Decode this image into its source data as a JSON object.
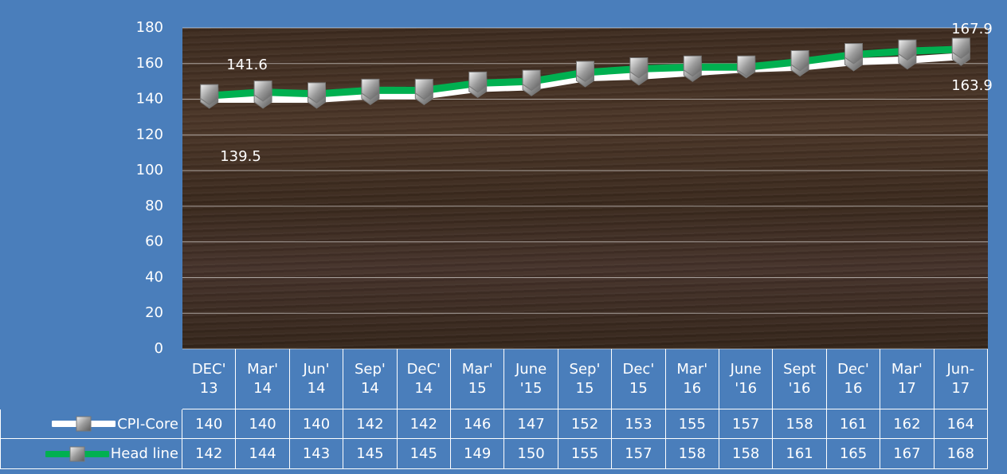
{
  "chart_data": {
    "type": "line",
    "categories": [
      "DEC' 13",
      "Mar' 14",
      "Jun' 14",
      "Sep' 14",
      "DeC' 14",
      "Mar' 15",
      "June '15",
      "Sep' 15",
      "Dec' 15",
      "Mar' 16",
      "June '16",
      "Sept '16",
      "Dec' 16",
      "Mar' 17",
      "Jun- 17"
    ],
    "series": [
      {
        "name": "CPI-Core",
        "color": "#ffffff",
        "values": [
          140,
          140,
          140,
          142,
          142,
          146,
          147,
          152,
          153,
          155,
          157,
          158,
          161,
          162,
          164
        ]
      },
      {
        "name": "Head line",
        "color": "#00b050",
        "values": [
          142,
          144,
          143,
          145,
          145,
          149,
          150,
          155,
          157,
          158,
          158,
          161,
          165,
          167,
          168
        ]
      }
    ],
    "annotations": [
      "141.6",
      "139.5",
      "167.9",
      "163.9"
    ],
    "ylim": [
      0,
      180
    ],
    "yticks": [
      0,
      20,
      40,
      60,
      80,
      100,
      120,
      140,
      160,
      180
    ],
    "grid": true
  }
}
